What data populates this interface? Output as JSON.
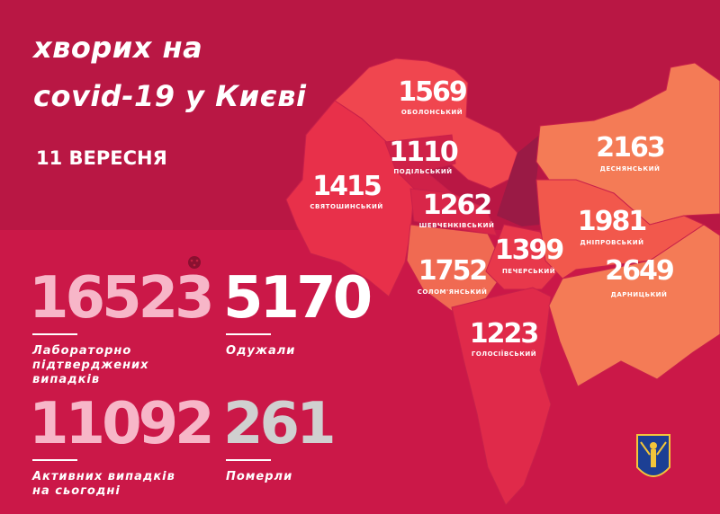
{
  "header": {
    "title_line1": "хворих на",
    "title_line2": "covid-19 у Києві",
    "date": "11 ВЕРЕСНЯ"
  },
  "stats": [
    {
      "value": "16523",
      "label": "Лабораторно підтверджених випадків",
      "color": "#f7b6c8"
    },
    {
      "value": "5170",
      "label": "Одужали",
      "color": "#ffffff"
    },
    {
      "value": "11092",
      "label": "Активних випадків на сьогодні",
      "color": "#f7b6c8"
    },
    {
      "value": "261",
      "label": "Померли",
      "color": "#d0d0d0"
    }
  ],
  "districts": [
    {
      "name": "ОБОЛОНСЬКИЙ",
      "cases": "1569",
      "color": "#f0464f"
    },
    {
      "name": "ПОДІЛЬСЬКИЙ",
      "cases": "1110",
      "color": "#cf2148"
    },
    {
      "name": "СВЯТОШИНСЬКИЙ",
      "cases": "1415",
      "color": "#e8304a"
    },
    {
      "name": "ШЕВЧЕНКІВСЬКИЙ",
      "cases": "1262",
      "color": "#d92649"
    },
    {
      "name": "ДЕСНЯНСЬКИЙ",
      "cases": "2163",
      "color": "#f47b56"
    },
    {
      "name": "ДНІПРОВСЬКИЙ",
      "cases": "1981",
      "color": "#f2584c"
    },
    {
      "name": "ПЕЧЕРСЬКИЙ",
      "cases": "1399",
      "color": "#e8384b"
    },
    {
      "name": "СОЛОМ'ЯНСЬКИЙ",
      "cases": "1752",
      "color": "#f06a52"
    },
    {
      "name": "ДАРНИЦЬКИЙ",
      "cases": "2649",
      "color": "#f47b56"
    },
    {
      "name": "ГОЛОСІЇВСЬКИЙ",
      "cases": "1223",
      "color": "#e02a4a"
    }
  ],
  "icons": {
    "virus": "virus-icon",
    "coat_of_arms": "kyiv-coat-of-arms-icon"
  },
  "colors": {
    "background": "#b91744",
    "river": "#9a1a45"
  }
}
